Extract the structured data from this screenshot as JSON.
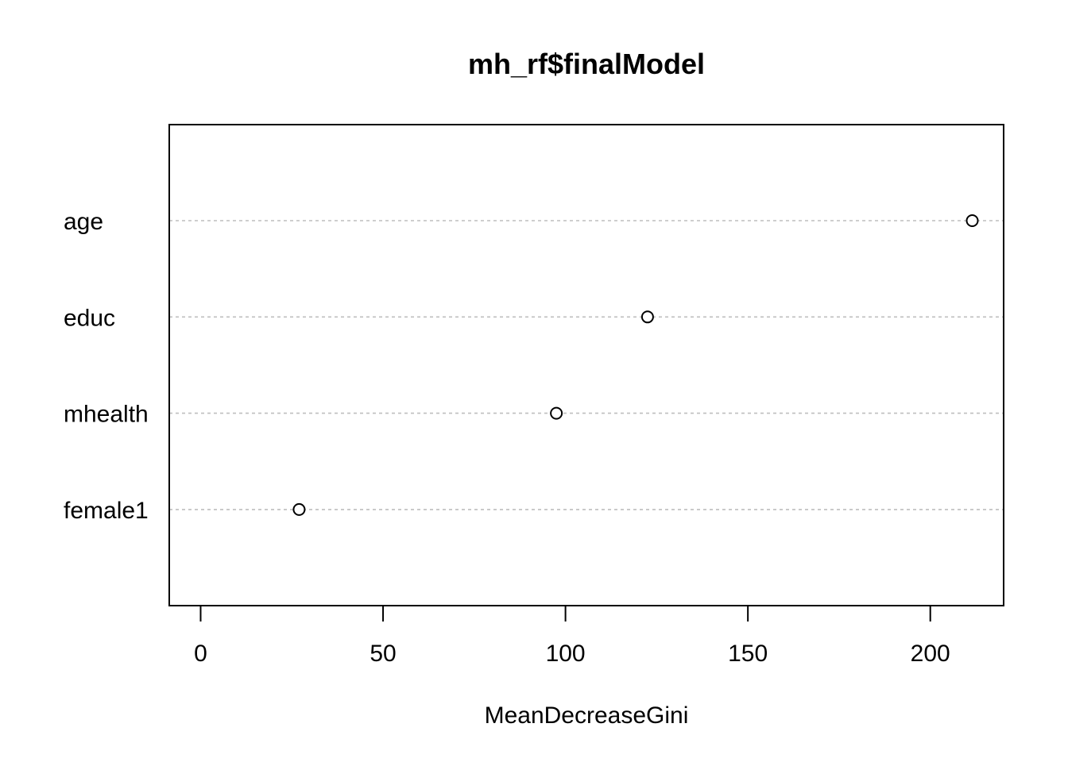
{
  "chart_data": {
    "type": "scatter",
    "title": "mh_rf$finalModel",
    "xlabel": "MeanDecreaseGini",
    "ylabel": "",
    "categories": [
      "age",
      "educ",
      "mhealth",
      "female1"
    ],
    "values": [
      211.5,
      122.5,
      97.5,
      27
    ],
    "xlim": [
      -8.6,
      220.1
    ],
    "xticks": [
      0,
      50,
      100,
      150,
      200
    ],
    "grid": true,
    "grid_style": "dotted horizontal lines per category",
    "colors": {
      "frame": "#000000",
      "grid": "#bebebe",
      "marker_fill": "#ffffff",
      "marker_stroke": "#000000"
    }
  }
}
